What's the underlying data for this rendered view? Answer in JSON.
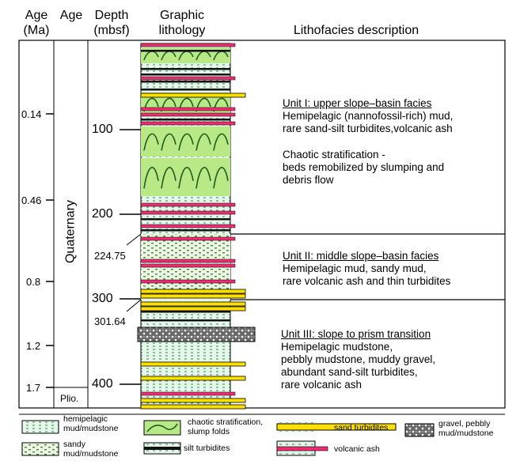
{
  "headers": {
    "age_ma": [
      "Age",
      "(Ma)"
    ],
    "age": "Age",
    "depth": [
      "Depth",
      "(mbsf)"
    ],
    "lithology": [
      "Graphic",
      "lithology"
    ],
    "description": "Lithofacies description"
  },
  "age_labels": [
    "0.14",
    "0.46",
    "0.8",
    "1.2",
    "1.7"
  ],
  "epochs": {
    "quaternary": "Quaternary",
    "pliocene": "Plio."
  },
  "depth_labels": [
    "100",
    "200",
    "300",
    "400"
  ],
  "boundaries": [
    "224.75",
    "301.64"
  ],
  "units": [
    {
      "title": "Unit I: upper slope–basin facies",
      "lines": [
        "Hemipelagic (nannofossil-rich) mud,",
        "rare sand-silt turbidites,volcanic ash"
      ],
      "extra": [
        "Chaotic stratification -",
        "beds remobilized by slumping and",
        "debris flow"
      ]
    },
    {
      "title": "Unit II: middle slope–basin facies",
      "lines": [
        "Hemipelagic mud, sandy mud,",
        "rare volcanic ash and thin turbidites"
      ]
    },
    {
      "title": "Unit III: slope to prism transition",
      "lines": [
        "Hemipelagic mudstone,",
        "pebbly mudstone, muddy gravel,",
        "abundant sand-silt turbidites,",
        "rare volcanic ash"
      ]
    }
  ],
  "legend": {
    "hemipelagic": [
      "hemipelagic",
      "mud/mudstone"
    ],
    "sandy": [
      "sandy",
      "mud/mudstone"
    ],
    "chaotic": [
      "chaotic stratification,",
      "slump folds"
    ],
    "silt": "silt turbidites",
    "sand": "sand turbidites",
    "ash": "volcanic ash",
    "gravel": [
      "gravel, pebbly",
      "mud/mudstone"
    ]
  },
  "colors": {
    "mud": "#e6f6ea",
    "mud_dash": "#2f8f4f",
    "chaotic": "#b9e887",
    "sand": "#ffe000",
    "ash": "#ee2e73",
    "silt": "#111111",
    "gravel": "#555555"
  }
}
